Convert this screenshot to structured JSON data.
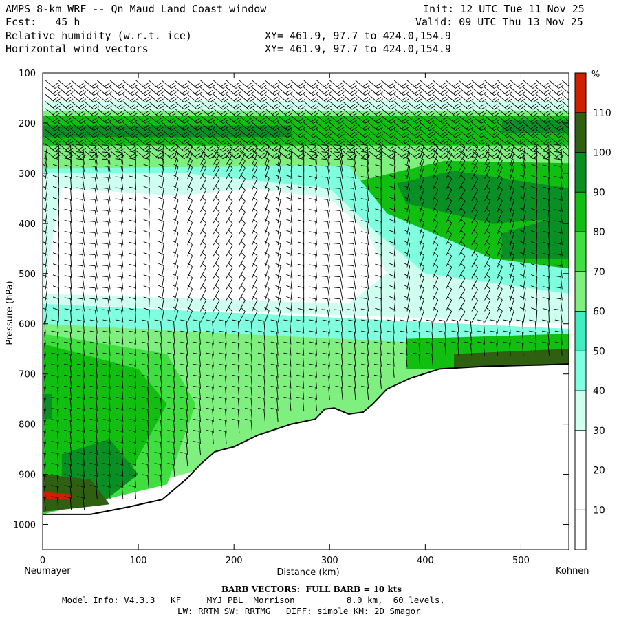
{
  "header": {
    "title": "AMPS 8-km WRF -- Qn Maud Land Coast window",
    "forecast": "Fcst:   45 h",
    "field1": "Relative humidity (w.r.t. ice)",
    "field2": "Horizontal wind vectors",
    "init": "Init: 12 UTC Tue 11 Nov 25",
    "valid": "Valid: 09 UTC Thu 13 Nov 25",
    "xy1": "XY= 461.9, 97.7 to 424.0,154.9",
    "xy2": "XY= 461.9, 97.7 to 424.0,154.9"
  },
  "footer": {
    "barb": "BARB VECTORS:  FULL BARB = 10 kts",
    "model1": "Model Info: V4.3.3   KF     MYJ PBL  Morrison          8.0 km,  60 levels,",
    "model2": "LW: RRTM SW: RRTMG   DIFF: simple KM: 2D Smagor",
    "left_station": "Neumayer",
    "right_station": "Kohnen"
  },
  "chart_data": {
    "type": "heatmap",
    "xlabel": "Distance (km)",
    "ylabel": "Pressure (hPa)",
    "xlim": [
      0,
      550
    ],
    "ylim": [
      100,
      1050
    ],
    "y_inverted": true,
    "x_ticks": [
      0,
      100,
      200,
      300,
      400,
      500
    ],
    "y_ticks": [
      100,
      200,
      300,
      400,
      500,
      600,
      700,
      800,
      900,
      1000
    ],
    "colorbar": {
      "unit": "%",
      "ticks": [
        10,
        20,
        30,
        40,
        50,
        60,
        70,
        80,
        90,
        100,
        110
      ],
      "levels": [
        {
          "lo": 0,
          "hi": 30,
          "color": "#ffffff"
        },
        {
          "lo": 30,
          "hi": 40,
          "color": "#cfffef"
        },
        {
          "lo": 40,
          "hi": 50,
          "color": "#7fffdf"
        },
        {
          "lo": 50,
          "hi": 60,
          "color": "#3fefbf"
        },
        {
          "lo": 60,
          "hi": 70,
          "color": "#7fef7f"
        },
        {
          "lo": 70,
          "hi": 80,
          "color": "#3fdf3f"
        },
        {
          "lo": 80,
          "hi": 90,
          "color": "#10bf10"
        },
        {
          "lo": 90,
          "hi": 100,
          "color": "#0a8f25"
        },
        {
          "lo": 100,
          "hi": 110,
          "color": "#2f5f10"
        },
        {
          "lo": 110,
          "hi": 120,
          "color": "#cf2000"
        }
      ]
    },
    "terrain": [
      [
        0,
        980
      ],
      [
        50,
        980
      ],
      [
        90,
        965
      ],
      [
        125,
        950
      ],
      [
        150,
        910
      ],
      [
        165,
        880
      ],
      [
        180,
        855
      ],
      [
        200,
        845
      ],
      [
        225,
        822
      ],
      [
        260,
        800
      ],
      [
        285,
        790
      ],
      [
        295,
        770
      ],
      [
        305,
        768
      ],
      [
        320,
        780
      ],
      [
        335,
        776
      ],
      [
        345,
        760
      ],
      [
        360,
        730
      ],
      [
        385,
        708
      ],
      [
        415,
        690
      ],
      [
        460,
        685
      ],
      [
        520,
        682
      ],
      [
        550,
        680
      ]
    ],
    "regions": [
      {
        "rh": 65,
        "pts": [
          [
            0,
            160
          ],
          [
            550,
            160
          ],
          [
            550,
            340
          ],
          [
            0,
            340
          ]
        ]
      },
      {
        "rh": 35,
        "pts": [
          [
            0,
            155
          ],
          [
            550,
            155
          ],
          [
            550,
            175
          ],
          [
            0,
            175
          ]
        ]
      },
      {
        "rh": 85,
        "pts": [
          [
            0,
            185
          ],
          [
            550,
            185
          ],
          [
            550,
            245
          ],
          [
            0,
            245
          ]
        ]
      },
      {
        "rh": 95,
        "pts": [
          [
            0,
            205
          ],
          [
            260,
            205
          ],
          [
            260,
            228
          ],
          [
            0,
            228
          ]
        ]
      },
      {
        "rh": 95,
        "pts": [
          [
            480,
            195
          ],
          [
            550,
            195
          ],
          [
            550,
            220
          ],
          [
            480,
            220
          ]
        ]
      },
      {
        "rh": 85,
        "pts": [
          [
            320,
            320
          ],
          [
            420,
            275
          ],
          [
            550,
            280
          ],
          [
            550,
            520
          ],
          [
            420,
            500
          ],
          [
            320,
            400
          ]
        ]
      },
      {
        "rh": 95,
        "pts": [
          [
            370,
            320
          ],
          [
            430,
            295
          ],
          [
            550,
            330
          ],
          [
            550,
            390
          ],
          [
            470,
            400
          ],
          [
            380,
            360
          ]
        ]
      },
      {
        "rh": 95,
        "pts": [
          [
            480,
            420
          ],
          [
            550,
            380
          ],
          [
            550,
            470
          ],
          [
            480,
            470
          ]
        ]
      },
      {
        "rh": 45,
        "pts": [
          [
            0,
            290
          ],
          [
            320,
            285
          ],
          [
            360,
            380
          ],
          [
            470,
            470
          ],
          [
            550,
            490
          ],
          [
            550,
            570
          ],
          [
            0,
            560
          ]
        ]
      },
      {
        "rh": 35,
        "pts": [
          [
            0,
            300
          ],
          [
            150,
            300
          ],
          [
            300,
            330
          ],
          [
            350,
            420
          ],
          [
            400,
            500
          ],
          [
            550,
            540
          ],
          [
            550,
            600
          ],
          [
            0,
            560
          ]
        ]
      },
      {
        "rh": 20,
        "pts": [
          [
            20,
            330
          ],
          [
            140,
            345
          ],
          [
            220,
            330
          ],
          [
            300,
            350
          ],
          [
            340,
            420
          ],
          [
            360,
            500
          ],
          [
            320,
            560
          ],
          [
            0,
            540
          ]
        ]
      },
      {
        "rh": 20,
        "pts": [
          [
            200,
            580
          ],
          [
            300,
            600
          ],
          [
            430,
            640
          ],
          [
            550,
            625
          ],
          [
            550,
            650
          ],
          [
            200,
            650
          ]
        ]
      },
      {
        "rh": 45,
        "pts": [
          [
            0,
            560
          ],
          [
            550,
            610
          ],
          [
            550,
            680
          ],
          [
            0,
            680
          ]
        ]
      },
      {
        "rh": 65,
        "pts": [
          [
            0,
            600
          ],
          [
            200,
            620
          ],
          [
            420,
            640
          ],
          [
            550,
            630
          ],
          [
            550,
            680
          ],
          [
            0,
            980
          ]
        ]
      },
      {
        "rh": 75,
        "pts": [
          [
            0,
            620
          ],
          [
            130,
            660
          ],
          [
            160,
            760
          ],
          [
            130,
            920
          ],
          [
            0,
            980
          ]
        ]
      },
      {
        "rh": 85,
        "pts": [
          [
            0,
            640
          ],
          [
            100,
            690
          ],
          [
            130,
            760
          ],
          [
            90,
            900
          ],
          [
            0,
            960
          ]
        ]
      },
      {
        "rh": 95,
        "pts": [
          [
            20,
            860
          ],
          [
            70,
            830
          ],
          [
            100,
            900
          ],
          [
            60,
            960
          ],
          [
            20,
            960
          ]
        ]
      },
      {
        "rh": 105,
        "pts": [
          [
            0,
            900
          ],
          [
            50,
            910
          ],
          [
            70,
            960
          ],
          [
            0,
            975
          ]
        ]
      },
      {
        "rh": 85,
        "pts": [
          [
            380,
            630
          ],
          [
            550,
            620
          ],
          [
            550,
            690
          ],
          [
            380,
            690
          ]
        ]
      },
      {
        "rh": 105,
        "pts": [
          [
            430,
            660
          ],
          [
            550,
            650
          ],
          [
            550,
            690
          ],
          [
            430,
            690
          ]
        ]
      },
      {
        "rh": 115,
        "pts": [
          [
            0,
            935
          ],
          [
            30,
            940
          ],
          [
            30,
            948
          ],
          [
            0,
            950
          ]
        ]
      },
      {
        "rh": 95,
        "pts": [
          [
            0,
            740
          ],
          [
            10,
            740
          ],
          [
            10,
            790
          ],
          [
            0,
            790
          ]
        ]
      }
    ]
  }
}
